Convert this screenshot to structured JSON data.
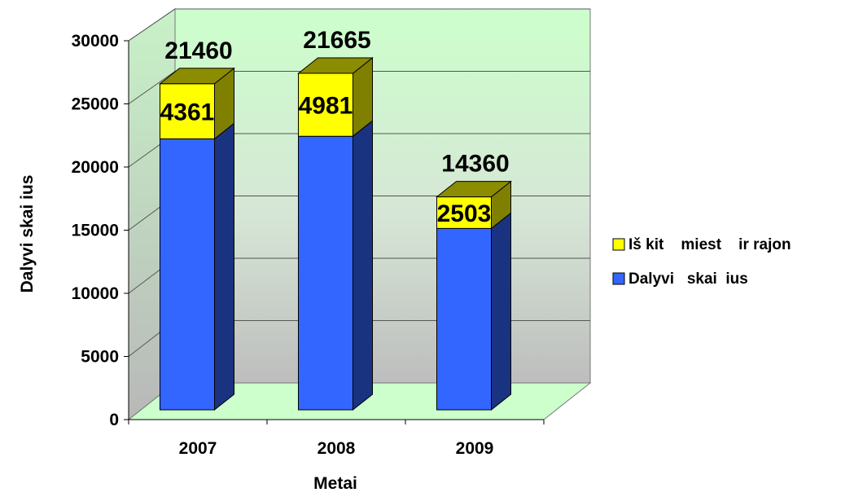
{
  "chart_data": {
    "type": "bar",
    "stacked": true,
    "three_d": true,
    "categories": [
      "2007",
      "2008",
      "2009"
    ],
    "series": [
      {
        "name": "Dalyvi   skai  ius",
        "values": [
          21460,
          21665,
          14360
        ],
        "color": "#3366FF"
      },
      {
        "name": "Iš kit    miest    ir rajon",
        "values": [
          4361,
          4981,
          2503
        ],
        "color": "#FFFF00"
      }
    ],
    "data_labels": {
      "totals_above": [
        "21460",
        "21665",
        "14360"
      ],
      "segment": [
        "4361",
        "4981",
        "2503"
      ]
    },
    "xlabel": "Metai",
    "ylabel": "Dalyvi   skai  ius",
    "ylim": [
      0,
      30000
    ],
    "yticks": [
      "0",
      "5000",
      "10000",
      "15000",
      "20000",
      "25000",
      "30000"
    ],
    "grid": true,
    "legend_position": "right",
    "colors": {
      "wall_top": "#CCFFCC",
      "wall_bottom": "#BDBDBD",
      "floor": "#CCFFCC",
      "gridline": "#555555"
    }
  }
}
